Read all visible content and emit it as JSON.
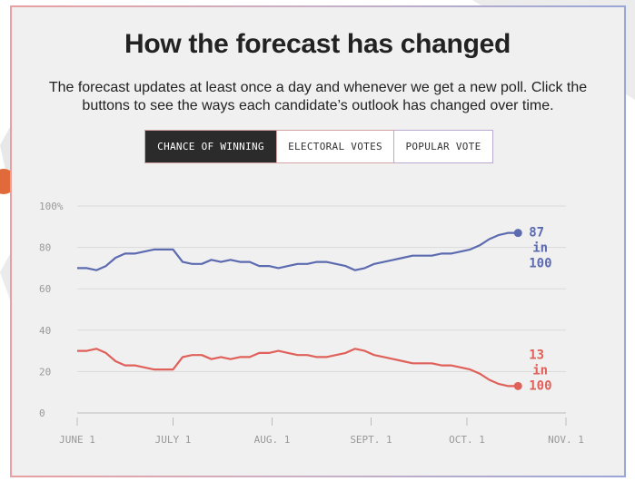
{
  "header": {
    "title": "How the forecast has changed",
    "subtitle": "The forecast updates at least once a day and whenever we get a new poll. Click the buttons to see the ways each candidate’s outlook has changed over time."
  },
  "tabs": [
    {
      "label": "CHANCE OF WINNING",
      "active": true
    },
    {
      "label": "ELECTORAL VOTES",
      "active": false
    },
    {
      "label": "POPULAR VOTE",
      "active": false
    }
  ],
  "chart_data": {
    "type": "line",
    "title": "",
    "xlabel": "",
    "ylabel": "",
    "ylim": [
      0,
      100
    ],
    "xlim": [
      "2016-06-01",
      "2016-11-01"
    ],
    "x_ticks": [
      "JUNE 1",
      "JULY 1",
      "AUG. 1",
      "SEPT. 1",
      "OCT. 1",
      "NOV. 1"
    ],
    "y_ticks": [
      "0",
      "20",
      "40",
      "60",
      "80",
      "100%"
    ],
    "grid": true,
    "x": [
      "2016-06-01",
      "2016-06-04",
      "2016-06-07",
      "2016-06-10",
      "2016-06-13",
      "2016-06-16",
      "2016-06-19",
      "2016-06-22",
      "2016-06-25",
      "2016-06-28",
      "2016-07-01",
      "2016-07-04",
      "2016-07-07",
      "2016-07-10",
      "2016-07-13",
      "2016-07-16",
      "2016-07-19",
      "2016-07-22",
      "2016-07-25",
      "2016-07-28",
      "2016-07-31",
      "2016-08-03",
      "2016-08-06",
      "2016-08-09",
      "2016-08-12",
      "2016-08-15",
      "2016-08-18",
      "2016-08-21",
      "2016-08-24",
      "2016-08-27",
      "2016-08-30",
      "2016-09-02",
      "2016-09-05",
      "2016-09-08",
      "2016-09-11",
      "2016-09-14",
      "2016-09-17",
      "2016-09-20",
      "2016-09-23",
      "2016-09-26",
      "2016-09-29",
      "2016-10-02",
      "2016-10-05",
      "2016-10-08",
      "2016-10-11",
      "2016-10-14",
      "2016-10-17"
    ],
    "series": [
      {
        "color": "#5c6bb0",
        "end_label": [
          "87",
          "in",
          "100"
        ],
        "values": [
          70,
          70,
          69,
          71,
          75,
          77,
          77,
          78,
          79,
          79,
          79,
          73,
          72,
          72,
          74,
          73,
          74,
          73,
          73,
          71,
          71,
          70,
          71,
          72,
          72,
          73,
          73,
          72,
          71,
          69,
          70,
          72,
          73,
          74,
          75,
          76,
          76,
          76,
          77,
          77,
          78,
          79,
          81,
          84,
          86,
          87,
          87
        ]
      },
      {
        "color": "#e0605a",
        "end_label": [
          "13",
          "in",
          "100"
        ],
        "values": [
          30,
          30,
          31,
          29,
          25,
          23,
          23,
          22,
          21,
          21,
          21,
          27,
          28,
          28,
          26,
          27,
          26,
          27,
          27,
          29,
          29,
          30,
          29,
          28,
          28,
          27,
          27,
          28,
          29,
          31,
          30,
          28,
          27,
          26,
          25,
          24,
          24,
          24,
          23,
          23,
          22,
          21,
          19,
          16,
          14,
          13,
          13
        ]
      }
    ]
  }
}
